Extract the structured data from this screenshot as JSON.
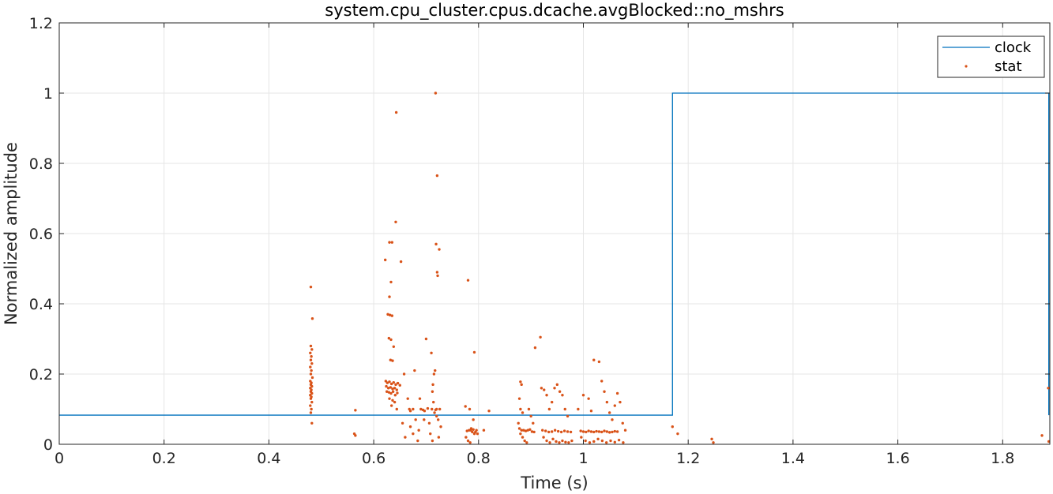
{
  "chart_data": {
    "type": "line",
    "title": "system.cpu_cluster.cpus.dcache.avgBlocked::no_mshrs",
    "xlabel": "Time (s)",
    "ylabel": "Normalized amplitude",
    "xlim": [
      0,
      1.89
    ],
    "ylim": [
      0,
      1.2
    ],
    "xticks": [
      "0",
      "0.2",
      "0.4",
      "0.6",
      "0.8",
      "1",
      "1.2",
      "1.4",
      "1.6",
      "1.8"
    ],
    "yticks": [
      "0",
      "0.2",
      "0.4",
      "0.6",
      "0.8",
      "1",
      "1.2"
    ],
    "grid": true,
    "legend_position": "top-right",
    "series": [
      {
        "name": "clock",
        "kind": "step-line",
        "color": "#0072BD",
        "x": [
          0,
          1.17,
          1.17,
          1.888,
          1.888
        ],
        "y": [
          0.083,
          0.083,
          1.0,
          1.0,
          0.083
        ]
      },
      {
        "name": "stat",
        "kind": "scatter",
        "color": "#D95319",
        "points": [
          [
            0.48,
            0.448
          ],
          [
            0.483,
            0.358
          ],
          [
            0.48,
            0.28
          ],
          [
            0.482,
            0.27
          ],
          [
            0.479,
            0.26
          ],
          [
            0.481,
            0.25
          ],
          [
            0.48,
            0.24
          ],
          [
            0.482,
            0.23
          ],
          [
            0.479,
            0.22
          ],
          [
            0.481,
            0.21
          ],
          [
            0.48,
            0.2
          ],
          [
            0.483,
            0.19
          ],
          [
            0.479,
            0.18
          ],
          [
            0.481,
            0.175
          ],
          [
            0.48,
            0.17
          ],
          [
            0.482,
            0.165
          ],
          [
            0.479,
            0.16
          ],
          [
            0.481,
            0.155
          ],
          [
            0.48,
            0.15
          ],
          [
            0.482,
            0.145
          ],
          [
            0.479,
            0.14
          ],
          [
            0.481,
            0.135
          ],
          [
            0.48,
            0.13
          ],
          [
            0.482,
            0.12
          ],
          [
            0.479,
            0.11
          ],
          [
            0.481,
            0.1
          ],
          [
            0.48,
            0.09
          ],
          [
            0.482,
            0.06
          ],
          [
            0.565,
            0.097
          ],
          [
            0.563,
            0.03
          ],
          [
            0.565,
            0.025
          ],
          [
            0.622,
            0.525
          ],
          [
            0.63,
            0.575
          ],
          [
            0.635,
            0.575
          ],
          [
            0.642,
            0.633
          ],
          [
            0.643,
            0.945
          ],
          [
            0.633,
            0.462
          ],
          [
            0.63,
            0.42
          ],
          [
            0.627,
            0.37
          ],
          [
            0.631,
            0.368
          ],
          [
            0.635,
            0.366
          ],
          [
            0.629,
            0.302
          ],
          [
            0.633,
            0.298
          ],
          [
            0.638,
            0.278
          ],
          [
            0.636,
            0.238
          ],
          [
            0.632,
            0.24
          ],
          [
            0.623,
            0.18
          ],
          [
            0.626,
            0.175
          ],
          [
            0.63,
            0.178
          ],
          [
            0.634,
            0.172
          ],
          [
            0.638,
            0.176
          ],
          [
            0.642,
            0.17
          ],
          [
            0.646,
            0.174
          ],
          [
            0.65,
            0.168
          ],
          [
            0.624,
            0.165
          ],
          [
            0.628,
            0.16
          ],
          [
            0.632,
            0.162
          ],
          [
            0.636,
            0.158
          ],
          [
            0.64,
            0.16
          ],
          [
            0.644,
            0.155
          ],
          [
            0.625,
            0.15
          ],
          [
            0.629,
            0.148
          ],
          [
            0.633,
            0.145
          ],
          [
            0.637,
            0.15
          ],
          [
            0.641,
            0.14
          ],
          [
            0.645,
            0.146
          ],
          [
            0.63,
            0.13
          ],
          [
            0.636,
            0.125
          ],
          [
            0.64,
            0.12
          ],
          [
            0.634,
            0.11
          ],
          [
            0.644,
            0.1
          ],
          [
            0.652,
            0.52
          ],
          [
            0.658,
            0.2
          ],
          [
            0.655,
            0.06
          ],
          [
            0.66,
            0.02
          ],
          [
            0.665,
            0.13
          ],
          [
            0.668,
            0.1
          ],
          [
            0.67,
            0.05
          ],
          [
            0.675,
            0.03
          ],
          [
            0.678,
            0.21
          ],
          [
            0.68,
            0.07
          ],
          [
            0.684,
            0.01
          ],
          [
            0.688,
            0.13
          ],
          [
            0.69,
            0.1
          ],
          [
            0.694,
            0.098
          ],
          [
            0.697,
            0.095
          ],
          [
            0.7,
            0.3
          ],
          [
            0.703,
            0.102
          ],
          [
            0.706,
            0.06
          ],
          [
            0.708,
            0.03
          ],
          [
            0.711,
            0.1
          ],
          [
            0.713,
            0.17
          ],
          [
            0.715,
            0.2
          ],
          [
            0.717,
            0.21
          ],
          [
            0.718,
            0.098
          ],
          [
            0.72,
            0.1
          ],
          [
            0.721,
            0.49
          ],
          [
            0.722,
            0.48
          ],
          [
            0.719,
            0.57
          ],
          [
            0.721,
            0.765
          ],
          [
            0.718,
            1.0
          ],
          [
            0.725,
            0.555
          ],
          [
            0.71,
            0.26
          ],
          [
            0.712,
            0.15
          ],
          [
            0.714,
            0.12
          ],
          [
            0.716,
            0.09
          ],
          [
            0.72,
            0.08
          ],
          [
            0.723,
            0.07
          ],
          [
            0.726,
            0.1
          ],
          [
            0.728,
            0.05
          ],
          [
            0.724,
            0.02
          ],
          [
            0.712,
            0.01
          ],
          [
            0.696,
            0.07
          ],
          [
            0.686,
            0.04
          ],
          [
            0.675,
            0.1
          ],
          [
            0.67,
            0.095
          ],
          [
            0.78,
            0.467
          ],
          [
            0.775,
            0.108
          ],
          [
            0.783,
            0.1
          ],
          [
            0.792,
            0.262
          ],
          [
            0.79,
            0.07
          ],
          [
            0.785,
            0.04
          ],
          [
            0.788,
            0.035
          ],
          [
            0.792,
            0.03
          ],
          [
            0.796,
            0.04
          ],
          [
            0.778,
            0.038
          ],
          [
            0.782,
            0.04
          ],
          [
            0.786,
            0.045
          ],
          [
            0.79,
            0.042
          ],
          [
            0.794,
            0.035
          ],
          [
            0.798,
            0.03
          ],
          [
            0.776,
            0.02
          ],
          [
            0.78,
            0.01
          ],
          [
            0.784,
            0.005
          ],
          [
            0.82,
            0.095
          ],
          [
            0.81,
            0.04
          ],
          [
            0.88,
            0.178
          ],
          [
            0.882,
            0.17
          ],
          [
            0.878,
            0.13
          ],
          [
            0.88,
            0.1
          ],
          [
            0.884,
            0.09
          ],
          [
            0.876,
            0.06
          ],
          [
            0.878,
            0.045
          ],
          [
            0.882,
            0.04
          ],
          [
            0.886,
            0.04
          ],
          [
            0.89,
            0.038
          ],
          [
            0.894,
            0.04
          ],
          [
            0.898,
            0.042
          ],
          [
            0.902,
            0.036
          ],
          [
            0.906,
            0.035
          ],
          [
            0.88,
            0.03
          ],
          [
            0.884,
            0.02
          ],
          [
            0.888,
            0.01
          ],
          [
            0.892,
            0.005
          ],
          [
            0.896,
            0.1
          ],
          [
            0.9,
            0.08
          ],
          [
            0.904,
            0.06
          ],
          [
            0.908,
            0.275
          ],
          [
            0.918,
            0.305
          ],
          [
            0.92,
            0.16
          ],
          [
            0.925,
            0.155
          ],
          [
            0.93,
            0.14
          ],
          [
            0.935,
            0.1
          ],
          [
            0.94,
            0.12
          ],
          [
            0.945,
            0.16
          ],
          [
            0.95,
            0.17
          ],
          [
            0.955,
            0.15
          ],
          [
            0.96,
            0.14
          ],
          [
            0.965,
            0.1
          ],
          [
            0.97,
            0.08
          ],
          [
            0.922,
            0.04
          ],
          [
            0.928,
            0.038
          ],
          [
            0.934,
            0.035
          ],
          [
            0.94,
            0.036
          ],
          [
            0.946,
            0.04
          ],
          [
            0.952,
            0.037
          ],
          [
            0.958,
            0.035
          ],
          [
            0.964,
            0.038
          ],
          [
            0.97,
            0.036
          ],
          [
            0.976,
            0.035
          ],
          [
            0.924,
            0.02
          ],
          [
            0.93,
            0.01
          ],
          [
            0.936,
            0.005
          ],
          [
            0.942,
            0.015
          ],
          [
            0.948,
            0.008
          ],
          [
            0.954,
            0.005
          ],
          [
            0.96,
            0.01
          ],
          [
            0.966,
            0.006
          ],
          [
            0.972,
            0.005
          ],
          [
            0.978,
            0.01
          ],
          [
            0.99,
            0.1
          ],
          [
            1.0,
            0.14
          ],
          [
            1.01,
            0.13
          ],
          [
            1.015,
            0.095
          ],
          [
            1.02,
            0.24
          ],
          [
            1.03,
            0.235
          ],
          [
            1.035,
            0.18
          ],
          [
            1.04,
            0.15
          ],
          [
            1.045,
            0.12
          ],
          [
            1.05,
            0.09
          ],
          [
            1.055,
            0.07
          ],
          [
            1.06,
            0.11
          ],
          [
            1.065,
            0.145
          ],
          [
            1.07,
            0.12
          ],
          [
            1.075,
            0.06
          ],
          [
            0.995,
            0.038
          ],
          [
            1.0,
            0.036
          ],
          [
            1.005,
            0.035
          ],
          [
            1.01,
            0.038
          ],
          [
            1.015,
            0.036
          ],
          [
            1.02,
            0.035
          ],
          [
            1.025,
            0.037
          ],
          [
            1.03,
            0.036
          ],
          [
            1.035,
            0.035
          ],
          [
            1.04,
            0.038
          ],
          [
            1.045,
            0.036
          ],
          [
            1.05,
            0.034
          ],
          [
            1.055,
            0.035
          ],
          [
            1.06,
            0.037
          ],
          [
            1.065,
            0.036
          ],
          [
            0.996,
            0.02
          ],
          [
            1.004,
            0.01
          ],
          [
            1.012,
            0.005
          ],
          [
            1.02,
            0.008
          ],
          [
            1.028,
            0.015
          ],
          [
            1.036,
            0.01
          ],
          [
            1.044,
            0.005
          ],
          [
            1.052,
            0.01
          ],
          [
            1.06,
            0.006
          ],
          [
            1.068,
            0.012
          ],
          [
            1.076,
            0.005
          ],
          [
            1.08,
            0.04
          ],
          [
            1.17,
            0.05
          ],
          [
            1.18,
            0.03
          ],
          [
            1.245,
            0.015
          ],
          [
            1.248,
            0.005
          ],
          [
            1.875,
            0.025
          ],
          [
            1.887,
            0.16
          ],
          [
            1.888,
            0.008
          ]
        ]
      }
    ]
  }
}
